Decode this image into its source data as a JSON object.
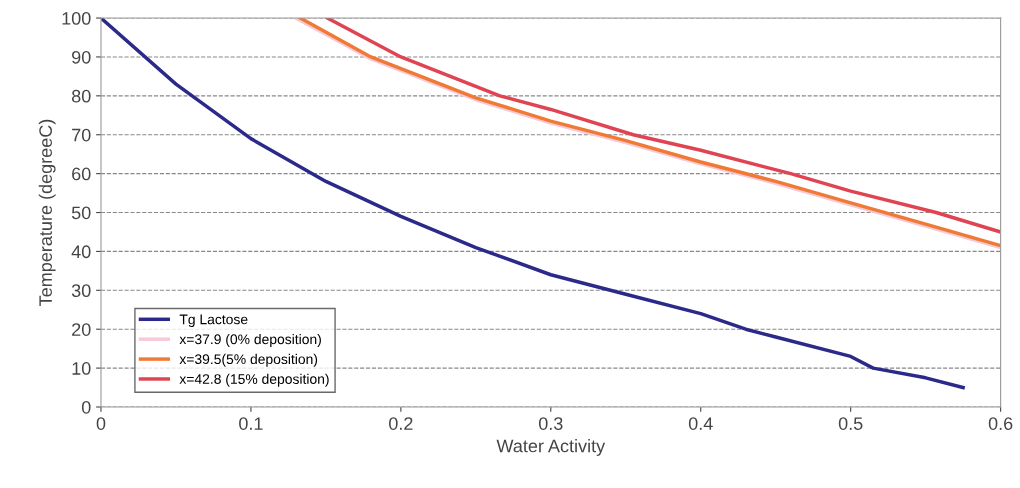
{
  "chart_data": {
    "type": "line",
    "xlabel": "Water Activity",
    "ylabel": "Temperature (degreeC)",
    "xlim": [
      0,
      0.6
    ],
    "xticks": [
      0,
      0.1,
      0.2,
      0.3,
      0.4,
      0.5,
      0.6
    ],
    "ylim": [
      0,
      100
    ],
    "yticks": [
      0,
      10,
      20,
      30,
      40,
      50,
      60,
      70,
      80,
      90,
      100
    ],
    "grid": "y",
    "legend": "bottom left",
    "marker": "none",
    "line_style": "solid",
    "series": [
      {
        "name": "Tg Lactose",
        "color": "#2b2a8a",
        "x": [
          0,
          0.05,
          0.1,
          0.15,
          0.2,
          0.25,
          0.3,
          0.35,
          0.4,
          0.43,
          0.45,
          0.5,
          0.515,
          0.55,
          0.575
        ],
        "values": [
          100,
          83,
          69,
          58,
          49,
          41,
          34,
          29,
          24,
          20,
          18,
          13,
          10,
          7.5,
          5
        ]
      },
      {
        "name": "x=37.9 (0% deposition)",
        "color": "#f6c9d6",
        "x": [
          0.13,
          0.18,
          0.25,
          0.3,
          0.35,
          0.4,
          0.45,
          0.5,
          0.55,
          0.6
        ],
        "values": [
          100,
          89.5,
          79,
          73,
          68,
          62.5,
          57.5,
          52,
          46.5,
          41
        ]
      },
      {
        "name": "x=39.5(5% deposition)",
        "color": "#f07a35",
        "x": [
          0.133,
          0.18,
          0.25,
          0.3,
          0.35,
          0.4,
          0.45,
          0.5,
          0.55,
          0.6
        ],
        "values": [
          100,
          90,
          79.5,
          73.5,
          68.5,
          63,
          58,
          52.5,
          47,
          41.5
        ]
      },
      {
        "name": "x=42.8 (15% deposition)",
        "color": "#e04452",
        "x": [
          0.151,
          0.2,
          0.266,
          0.3,
          0.355,
          0.4,
          0.46,
          0.5,
          0.557,
          0.6
        ],
        "values": [
          100,
          90,
          80,
          76.5,
          70,
          66,
          60,
          55.5,
          50,
          45
        ]
      }
    ]
  }
}
